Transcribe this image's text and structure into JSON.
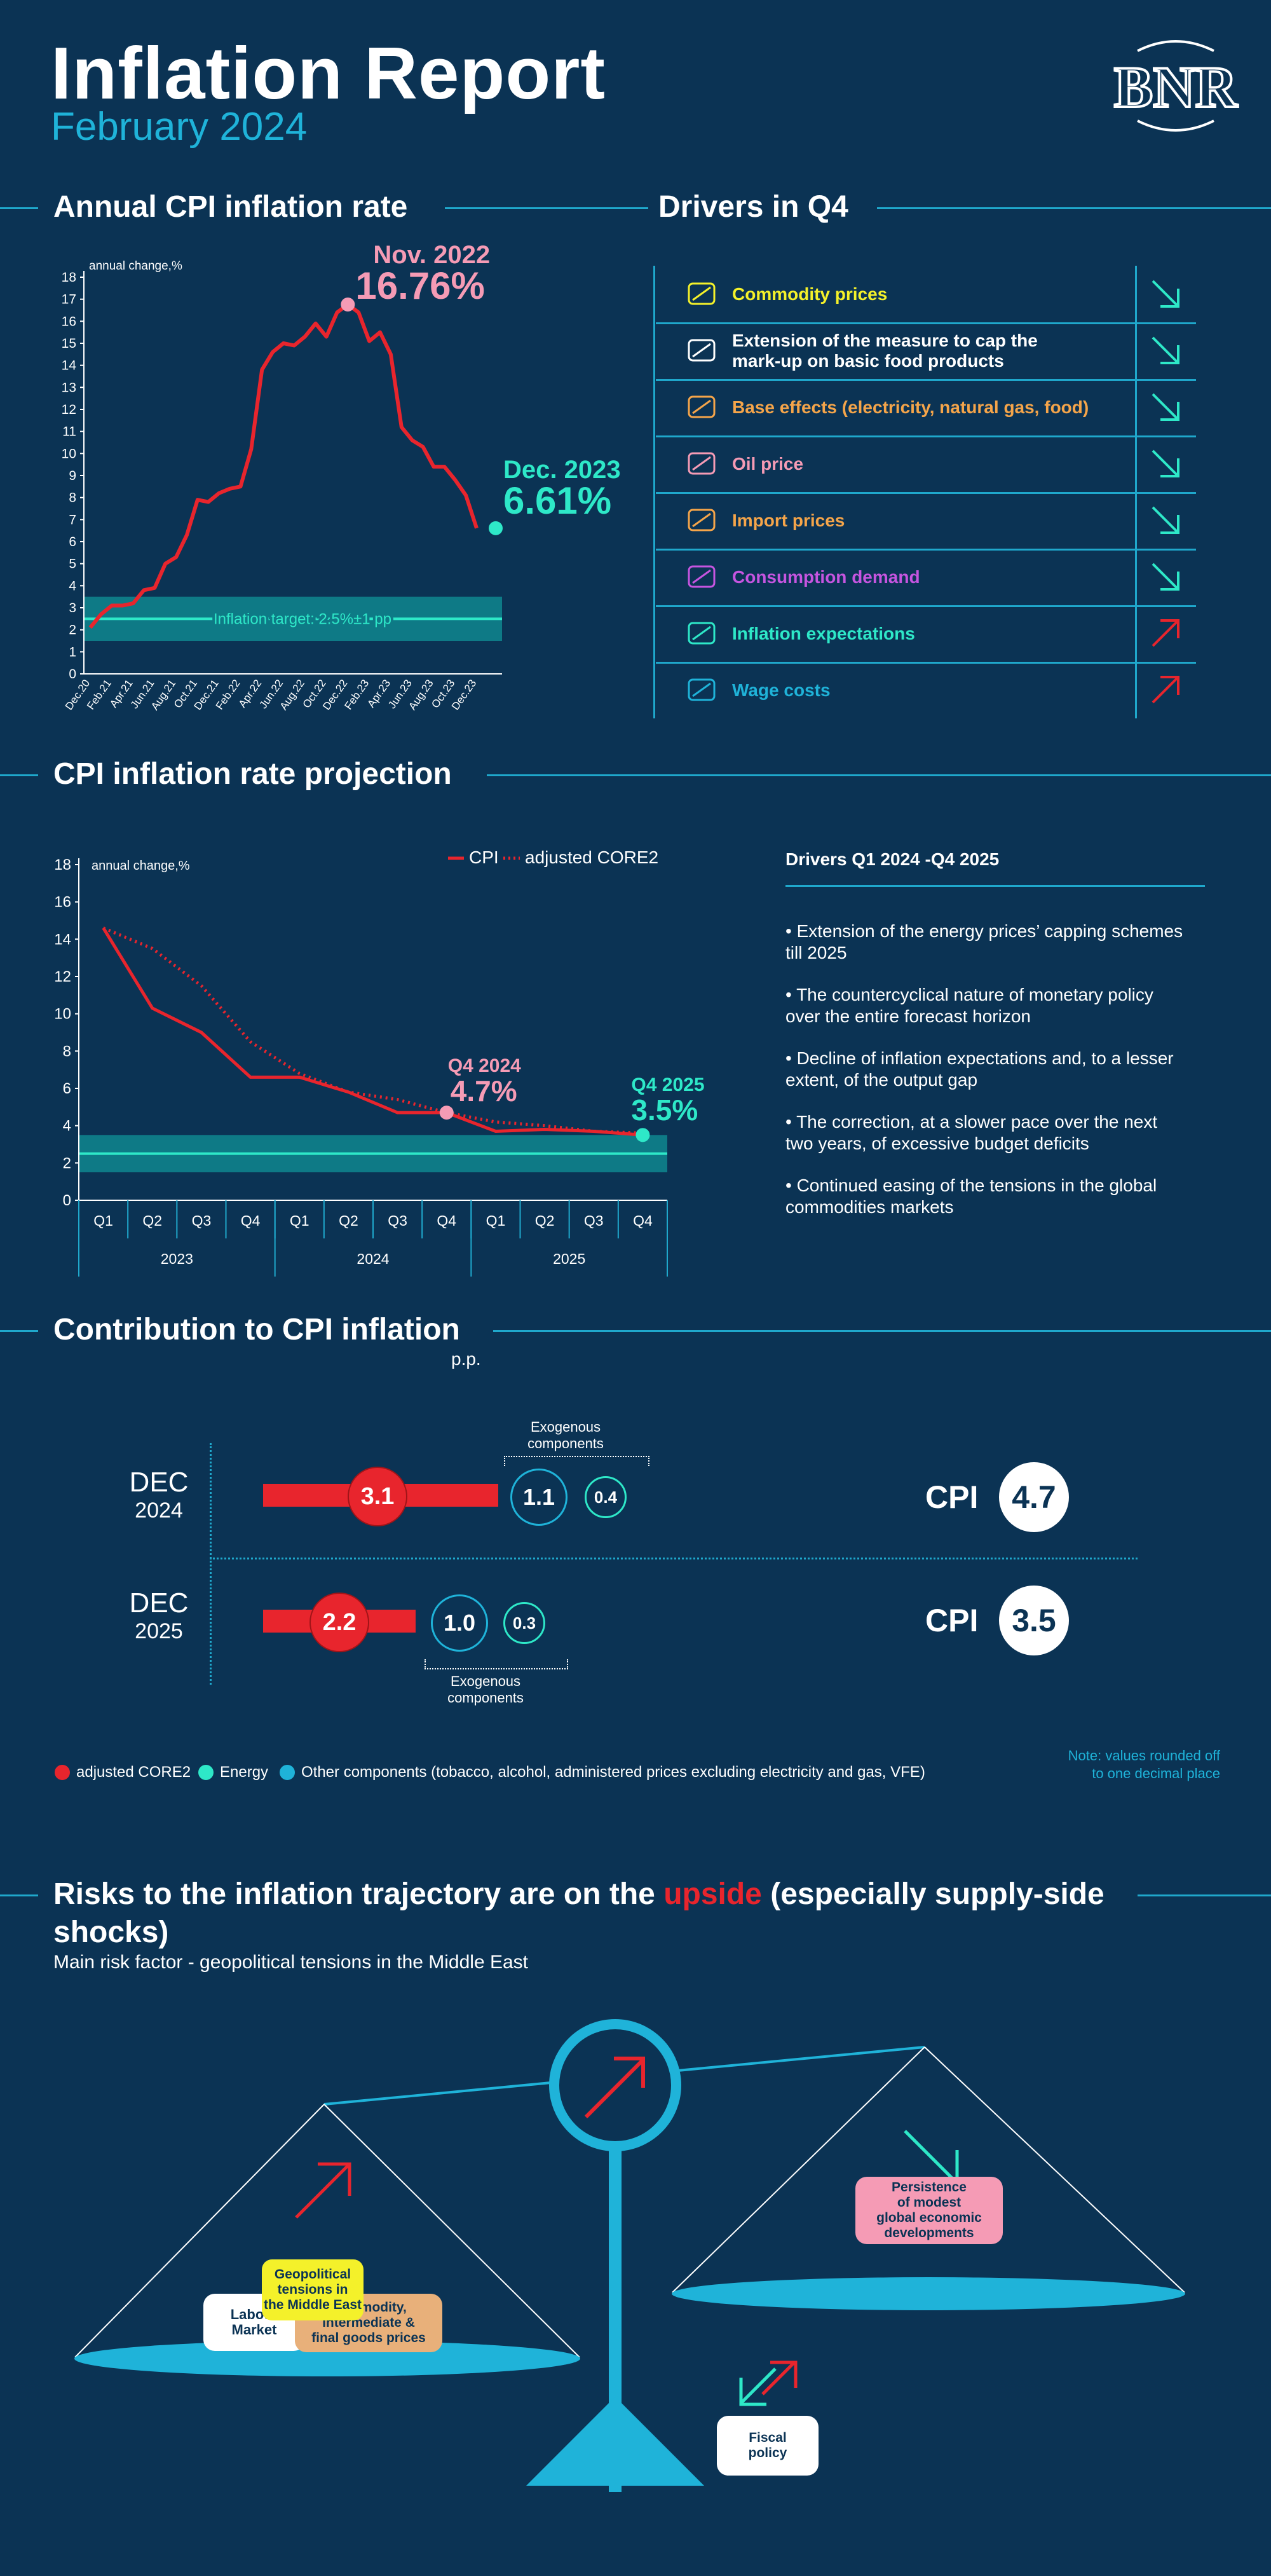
{
  "header": {
    "title": "Inflation Report",
    "subtitle": "February 2024",
    "logo_text": "BNR"
  },
  "colors": {
    "background": "#0b3354",
    "accent": "#1fb3d9",
    "red": "#e8252d",
    "teal": "#2ee8c8",
    "pink": "#f59bb5",
    "yellow": "#f4f12a",
    "orange": "#f5a54a",
    "magenta": "#c655e0"
  },
  "sections": {
    "cpi_annual": "Annual CPI inflation rate",
    "drivers_q4": "Drivers in Q4",
    "projection": "CPI inflation rate projection",
    "contribution": "Contribution to CPI inflation",
    "contribution_unit": "p.p.",
    "risks_title_pre": "Risks to the inflation trajectory are on the ",
    "risks_title_hl": "upside",
    "risks_title_post": " (especially supply-side",
    "risks_title_line2": "shocks)",
    "risks_subtitle": "Main risk factor - geopolitical tensions in the Middle East"
  },
  "chart_data": [
    {
      "type": "line",
      "title": "Annual CPI inflation rate",
      "ylabel": "annual change,%",
      "ylim": [
        0,
        18
      ],
      "yticks": [
        "0",
        "1",
        "2",
        "3",
        "4",
        "5",
        "6",
        "7",
        "8",
        "9",
        "10",
        "11",
        "12",
        "13",
        "14",
        "15",
        "16",
        "17",
        "18"
      ],
      "xticks": [
        "Dec.20",
        "Feb.21",
        "Apr.21",
        "Jun.21",
        "Aug.21",
        "Oct.21",
        "Dec.21",
        "Feb.22",
        "Apr.22",
        "Jun.22",
        "Aug.22",
        "Oct.22",
        "Dec.22",
        "Feb.23",
        "Apr.23",
        "Jun.23",
        "Aug.23",
        "Oct.23",
        "Dec.23"
      ],
      "series": [
        {
          "values": [
            2.1,
            2.7,
            3.1,
            3.1,
            3.2,
            3.8,
            3.9,
            5.0,
            5.3,
            6.3,
            7.9,
            7.8,
            8.2,
            8.4,
            8.5,
            10.2,
            13.8,
            14.6,
            15.0,
            14.9,
            15.3,
            15.9,
            15.3,
            16.4,
            16.76,
            16.4,
            15.1,
            15.5,
            14.5,
            11.2,
            10.6,
            10.3,
            9.4,
            9.4,
            8.8,
            8.1,
            6.61
          ]
        }
      ],
      "target_band": [
        1.5,
        3.5
      ],
      "target_line": 2.5,
      "target_label": "Inflation target: 2.5%±1 pp",
      "annotations": [
        {
          "label": "Nov. 2022",
          "value_label": "16.76%",
          "x_index": 24,
          "y": 16.76
        },
        {
          "label": "Dec. 2023",
          "value_label": "6.61%",
          "x_index": 36,
          "y": 6.61
        }
      ],
      "grid": false
    },
    {
      "type": "line",
      "title": "CPI inflation rate projection",
      "ylabel": "annual change,%",
      "ylim": [
        0,
        18
      ],
      "yticks": [
        "0",
        "2",
        "4",
        "6",
        "8",
        "10",
        "12",
        "14",
        "16",
        "18"
      ],
      "categories": [
        "Q1",
        "Q2",
        "Q3",
        "Q4",
        "Q1",
        "Q2",
        "Q3",
        "Q4",
        "Q1",
        "Q2",
        "Q3",
        "Q4"
      ],
      "years": [
        "2023",
        "2024",
        "2025"
      ],
      "series": [
        {
          "name": "CPI",
          "values": [
            14.6,
            10.3,
            9.0,
            6.6,
            6.6,
            5.8,
            4.7,
            4.7,
            3.7,
            3.8,
            3.7,
            3.5
          ]
        },
        {
          "name": "adjusted CORE2",
          "values": [
            14.6,
            13.5,
            11.5,
            8.5,
            6.8,
            5.8,
            5.4,
            4.7,
            4.2,
            4.0,
            3.7,
            3.6
          ]
        }
      ],
      "target_band": [
        1.5,
        3.5
      ],
      "target_line": 2.5,
      "annotations": [
        {
          "label": "Q4  2024",
          "value_label": "4.7%",
          "x_index": 7,
          "y": 4.7
        },
        {
          "label": "Q4 2025",
          "value_label": "3.5%",
          "x_index": 11,
          "y": 3.5
        }
      ],
      "legend_position": "top-right",
      "grid": false
    }
  ],
  "drivers": [
    {
      "label": "Commodity prices",
      "color": "#f4f12a",
      "icon": "wheat-icon",
      "trend": "down"
    },
    {
      "label": "Extension of the measure to cap the",
      "label2": "mark-up on basic food products",
      "color": "#ffffff",
      "icon": "food-basket-icon",
      "trend": "down"
    },
    {
      "label": "Base effects (electricity, natural gas, food)",
      "color": "#f5a54a",
      "icon": "plug-icon",
      "trend": "down"
    },
    {
      "label": "Oil price",
      "color": "#f59bb5",
      "icon": "oil-drop-icon",
      "trend": "down"
    },
    {
      "label": "Import prices",
      "color": "#f5a54a",
      "icon": "price-tag-icon",
      "trend": "down"
    },
    {
      "label": "Consumption demand",
      "color": "#c655e0",
      "icon": "hand-up-icon",
      "trend": "down"
    },
    {
      "label": "Inflation expectations",
      "color": "#2ee8c8",
      "icon": "bar-chart-icon",
      "trend": "up"
    },
    {
      "label": "Wage costs",
      "color": "#1fb3d9",
      "icon": "money-icon",
      "trend": "up"
    }
  ],
  "projection_drivers": {
    "title": "Drivers Q1 2024 -Q4 2025",
    "bullets": [
      [
        "• Extension of the energy prices’ capping schemes",
        "till 2025"
      ],
      [
        "• The countercyclical nature of monetary policy",
        "over the entire forecast horizon"
      ],
      [
        "• Decline of inflation expectations and, to a lesser",
        "extent, of the output gap"
      ],
      [
        "• The correction, at a slower pace over the next",
        "two years, of excessive budget deficits"
      ],
      [
        "• Continued easing of the tensions in the global",
        "commodities markets"
      ]
    ]
  },
  "contribution": {
    "rows": [
      {
        "month": "DEC",
        "year": "2024",
        "core2": "3.1",
        "energy": "1.1",
        "other": "0.4",
        "cpi_label": "CPI",
        "cpi": "4.7"
      },
      {
        "month": "DEC",
        "year": "2025",
        "core2": "2.2",
        "energy": "1.0",
        "other": "0.3",
        "cpi_label": "CPI",
        "cpi": "3.5"
      }
    ],
    "exogenous_label_1": "Exogenous",
    "exogenous_label_2": "components",
    "legend": [
      {
        "label": "adjusted CORE2",
        "color": "#e8252d"
      },
      {
        "label": "Energy",
        "color": "#2ee8c8"
      },
      {
        "label": "Other components (tobacco, alcohol, administered prices excluding electricity and gas, VFE)",
        "color": "#1fb3d9"
      }
    ],
    "note_line1": "Note: values rounded off",
    "note_line2": "to one decimal place"
  },
  "risks": {
    "left_tags": [
      {
        "text1": "Geopolitical",
        "text2": "tensions in",
        "text3": "the Middle East",
        "color": "#f4f12a"
      },
      {
        "text1": "Labour",
        "text2": "Market",
        "color": "#ffffff"
      },
      {
        "text1": "Commodity,",
        "text2": "intermediate &",
        "text3": "final goods prices",
        "color": "#e8b07a"
      }
    ],
    "right_tag": {
      "text1": "Persistence",
      "text2": "of modest",
      "text3": "global economic",
      "text4": "developments",
      "color": "#f59bb5"
    },
    "bottom_tag": {
      "text1": "Fiscal",
      "text2": "policy",
      "color": "#ffffff"
    }
  }
}
